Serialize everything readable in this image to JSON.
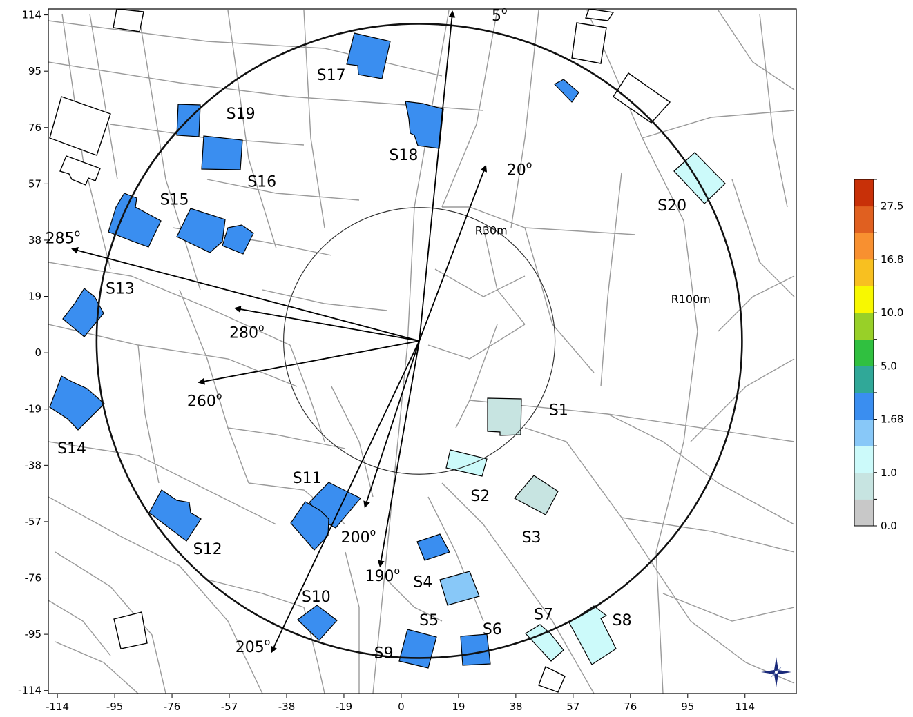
{
  "axes": {
    "x_ticks": [
      -114,
      -95,
      -76,
      -57,
      -38,
      -19,
      0,
      19,
      38,
      57,
      76,
      95,
      114
    ],
    "y_ticks": [
      114,
      95,
      76,
      57,
      38,
      19,
      0,
      -19,
      -38,
      -57,
      -76,
      -95,
      -114
    ],
    "xlim": [
      -117,
      131
    ],
    "ylim": [
      -115,
      116
    ]
  },
  "rings": [
    {
      "label": "R30m",
      "radius": 45,
      "color": "#333333"
    },
    {
      "label": "R100m",
      "radius": 107,
      "color": "#111111"
    }
  ],
  "center": [
    6,
    4
  ],
  "directions": [
    {
      "label": "5",
      "deg": "o",
      "tip": [
        17,
        115
      ],
      "label_at": [
        30,
        112
      ]
    },
    {
      "label": "20",
      "deg": "o",
      "tip": [
        28,
        63
      ],
      "label_at": [
        35,
        60
      ]
    },
    {
      "label": "285",
      "deg": "o",
      "tip": [
        -109,
        35
      ],
      "label_at": [
        -118,
        37
      ]
    },
    {
      "label": "280",
      "deg": "o",
      "tip": [
        -55,
        15
      ],
      "label_at": [
        -57,
        5
      ]
    },
    {
      "label": "260",
      "deg": "o",
      "tip": [
        -67,
        -10
      ],
      "label_at": [
        -71,
        -18
      ]
    },
    {
      "label": "200",
      "deg": "o",
      "tip": [
        -12,
        -52
      ],
      "label_at": [
        -20,
        -64
      ]
    },
    {
      "label": "190",
      "deg": "o",
      "tip": [
        -7,
        -72
      ],
      "label_at": [
        -12,
        -77
      ]
    },
    {
      "label": "205",
      "deg": "o",
      "tip": [
        -43,
        -101
      ],
      "label_at": [
        -55,
        -101
      ]
    }
  ],
  "sites": [
    {
      "label": "S1",
      "level": 0.8,
      "label_at": [
        49,
        -21
      ]
    },
    {
      "label": "S2",
      "level": 1.0,
      "label_at": [
        23,
        -50
      ]
    },
    {
      "label": "S3",
      "level": 0.8,
      "label_at": [
        40,
        -64
      ]
    },
    {
      "label": "S4",
      "level": 2.0,
      "label_at": [
        4,
        -79
      ]
    },
    {
      "label": "S5",
      "level": 1.8,
      "label_at": [
        6,
        -92
      ]
    },
    {
      "label": "S6",
      "level": 2.0,
      "label_at": [
        27,
        -95
      ]
    },
    {
      "label": "S7",
      "level": 1.1,
      "label_at": [
        44,
        -90
      ]
    },
    {
      "label": "S8",
      "level": 1.1,
      "label_at": [
        70,
        -92
      ]
    },
    {
      "label": "S9",
      "level": 2.0,
      "label_at": [
        -9,
        -103
      ]
    },
    {
      "label": "S10",
      "level": 2.0,
      "label_at": [
        -33,
        -84
      ]
    },
    {
      "label": "S11",
      "level": 2.0,
      "label_at": [
        -36,
        -44
      ]
    },
    {
      "label": "S12",
      "level": 2.0,
      "label_at": [
        -69,
        -68
      ]
    },
    {
      "label": "S13",
      "level": 2.0,
      "label_at": [
        -98,
        20
      ]
    },
    {
      "label": "S14",
      "level": 2.0,
      "label_at": [
        -114,
        -34
      ]
    },
    {
      "label": "S15",
      "level": 2.0,
      "label_at": [
        -80,
        50
      ]
    },
    {
      "label": "S16",
      "level": 2.0,
      "label_at": [
        -51,
        56
      ]
    },
    {
      "label": "S17",
      "level": 2.0,
      "label_at": [
        -28,
        92
      ]
    },
    {
      "label": "S18",
      "level": 2.0,
      "label_at": [
        -4,
        65
      ]
    },
    {
      "label": "S19",
      "level": 2.0,
      "label_at": [
        -58,
        79
      ]
    },
    {
      "label": "S20",
      "level": 1.1,
      "label_at": [
        85,
        48
      ]
    }
  ],
  "colorbar": {
    "tick_labels": [
      "0.0",
      "1.0",
      "1.68",
      "5.0",
      "10.0",
      "16.8",
      "27.5"
    ],
    "colors": [
      "#c8c8c8",
      "#c7e4e1",
      "#ccfafa",
      "#88c8f8",
      "#3a8ef0",
      "#30a898",
      "#30c040",
      "#98d028",
      "#f8f800",
      "#f8c020",
      "#f89030",
      "#e06020",
      "#c83008"
    ]
  },
  "compass": {
    "name": "compass-rose-icon"
  }
}
